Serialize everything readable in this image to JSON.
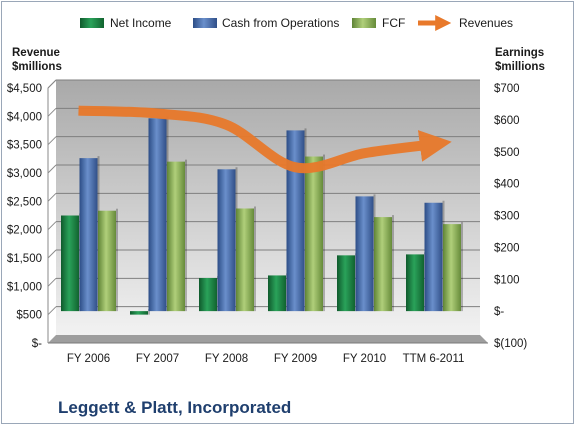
{
  "chart_data": {
    "type": "bar",
    "company": "Leggett & Platt, Incorporated",
    "categories": [
      "FY 2006",
      "FY 2007",
      "FY 2008",
      "FY 2009",
      "FY 2010",
      "TTM 6-2011"
    ],
    "series": [
      {
        "name": "Net Income",
        "axis": "right",
        "type": "bar",
        "color": "#1e8a4a",
        "values": [
          300,
          -11,
          104,
          112,
          175,
          178
        ]
      },
      {
        "name": "Cash from Operations",
        "axis": "right",
        "type": "bar",
        "color": "#4a6fb0",
        "values": [
          480,
          605,
          445,
          567,
          360,
          340
        ]
      },
      {
        "name": "FCF",
        "axis": "right",
        "type": "bar",
        "color": "#8fb457",
        "values": [
          315,
          469,
          322,
          485,
          295,
          273
        ]
      },
      {
        "name": "Revenues",
        "axis": "left",
        "type": "line",
        "color": "#e8792b",
        "values": [
          4100,
          4050,
          3850,
          3100,
          3350,
          3500
        ]
      }
    ],
    "y_left": {
      "label_line1": "Revenue",
      "label_line2": "$millions",
      "range": [
        0,
        4500
      ],
      "ticks": [
        "$4,500",
        "$4,000",
        "$3,500",
        "$3,000",
        "$2,500",
        "$2,000",
        "$1,500",
        "$1,000",
        "$500",
        "$-"
      ]
    },
    "y_right": {
      "label_line1": "Earnings",
      "label_line2": "$millions",
      "range": [
        -100,
        700
      ],
      "ticks": [
        "$700",
        "$600",
        "$500",
        "$400",
        "$300",
        "$200",
        "$100",
        "$-",
        "$(100)"
      ]
    },
    "legend": {
      "position": "top",
      "items": [
        "Net Income",
        "Cash from Operations",
        "FCF",
        "Revenues"
      ]
    },
    "background": {
      "plot_top": "#a9a9a9",
      "plot_bottom": "#f2f2f2",
      "floor": "#9e9e9e"
    }
  }
}
